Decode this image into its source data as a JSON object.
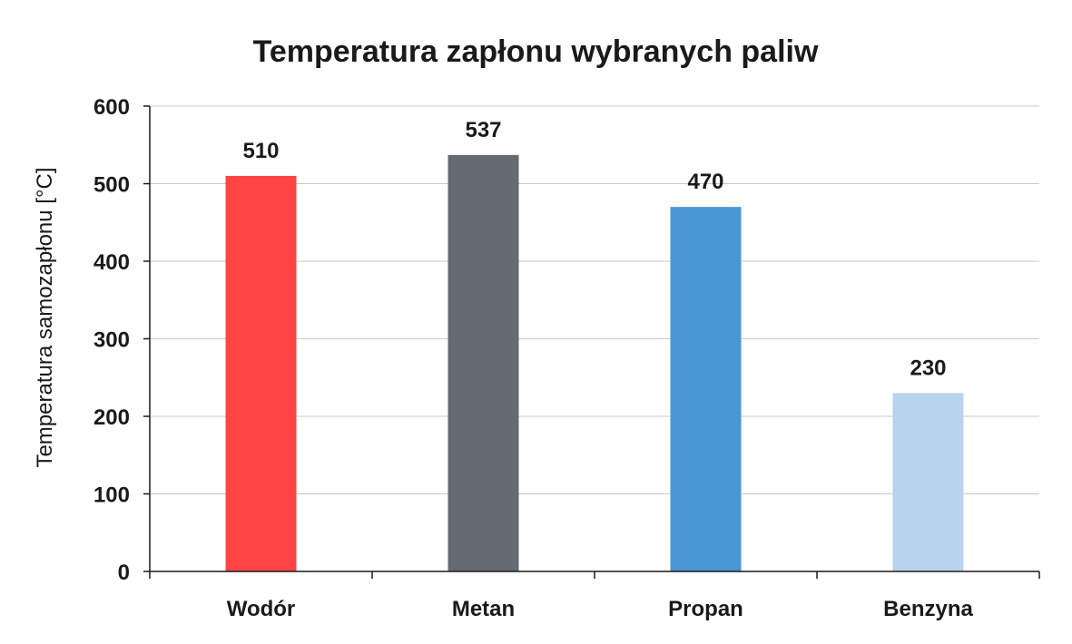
{
  "chart_data": {
    "type": "bar",
    "title": "Temperatura zapłonu wybranych paliw",
    "xlabel": "",
    "ylabel": "Temperatura samozapłonu [°C]",
    "categories": [
      "Wodór",
      "Metan",
      "Propan",
      "Benzyna"
    ],
    "values": [
      510,
      537,
      470,
      230
    ],
    "data_labels": [
      "510",
      "537",
      "470",
      "230"
    ],
    "colors": [
      "#ff4444",
      "#656a73",
      "#4a97d3",
      "#b8d3ed"
    ],
    "ylim": [
      0,
      600
    ],
    "yticks": [
      0,
      100,
      200,
      300,
      400,
      500,
      600
    ],
    "ytick_labels": [
      "0",
      "100",
      "200",
      "300",
      "400",
      "500",
      "600"
    ],
    "grid": true,
    "legend": "none"
  }
}
